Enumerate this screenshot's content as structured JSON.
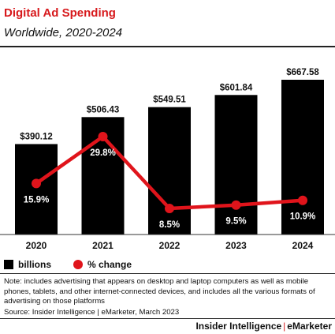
{
  "header": {
    "title": "Digital Ad Spending",
    "subtitle": "Worldwide, 2020-2024"
  },
  "legend": {
    "bars_label": "billions",
    "line_label": "% change"
  },
  "footer": {
    "note": "Note: includes advertising that appears on desktop and laptop computers as well as mobile phones, tablets, and other internet-connected devices, and includes all the various formats of advertising on those platforms",
    "source": "Source: Insider Intelligence | eMarketer, March 2023",
    "brand_left": "Insider Intelligence",
    "brand_sep": "|",
    "brand_right": "eMarketer"
  },
  "colors": {
    "bar": "#000000",
    "line": "#e0141b",
    "title": "#d7191c"
  },
  "chart_data": {
    "type": "bar",
    "categories": [
      "2020",
      "2021",
      "2022",
      "2023",
      "2024"
    ],
    "series": [
      {
        "name": "billions",
        "type": "bar",
        "values": [
          390.12,
          506.43,
          549.51,
          601.84,
          667.58
        ],
        "labels": [
          "$390.12",
          "$506.43",
          "$549.51",
          "$601.84",
          "$667.58"
        ]
      },
      {
        "name": "% change",
        "type": "line",
        "values": [
          15.9,
          29.8,
          8.5,
          9.5,
          10.9
        ],
        "labels": [
          "15.9%",
          "29.8%",
          "8.5%",
          "9.5%",
          "10.9%"
        ]
      }
    ],
    "bar_ylim": [
      0,
      667.58
    ],
    "line_ylim": [
      0,
      29.8
    ]
  }
}
